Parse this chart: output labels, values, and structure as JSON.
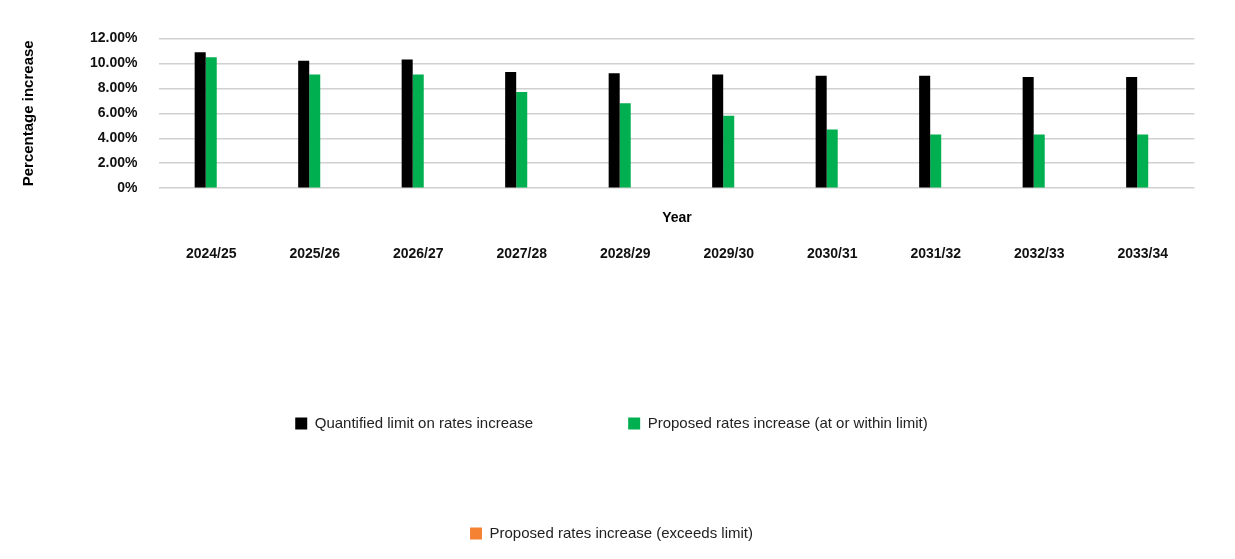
{
  "chart_data": {
    "type": "bar",
    "xlabel": "Year",
    "ylabel": "Percentage increase",
    "categories": [
      "2024/25",
      "2025/26",
      "2026/27",
      "2027/28",
      "2028/29",
      "2029/30",
      "2030/31",
      "2031/32",
      "2032/33",
      "2033/34"
    ],
    "series": [
      {
        "name": "Quantified limit on rates increase",
        "color": "#000000",
        "values": [
          10.9,
          10.2,
          10.3,
          9.3,
          9.2,
          9.1,
          9.0,
          9.0,
          8.9,
          8.9
        ]
      },
      {
        "name": "Proposed rates increase (at or within limit)",
        "color": "#00b050",
        "values": [
          10.5,
          9.1,
          9.1,
          7.7,
          6.8,
          5.8,
          4.7,
          4.3,
          4.3,
          4.3
        ]
      },
      {
        "name": "Proposed rates increase (exceeds limit)",
        "color": "#f58233",
        "values": [
          null,
          null,
          null,
          null,
          null,
          null,
          null,
          null,
          null,
          null
        ]
      }
    ],
    "ylim": [
      0,
      12
    ],
    "yticks": [
      {
        "value": 0,
        "label": "0%"
      },
      {
        "value": 2,
        "label": "2.00%"
      },
      {
        "value": 4,
        "label": "4.00%"
      },
      {
        "value": 6,
        "label": "6.00%"
      },
      {
        "value": 8,
        "label": "8.00%"
      },
      {
        "value": 10,
        "label": "10.00%"
      },
      {
        "value": 12,
        "label": "12.00%"
      }
    ],
    "grid": "y",
    "legend": "bottom"
  }
}
